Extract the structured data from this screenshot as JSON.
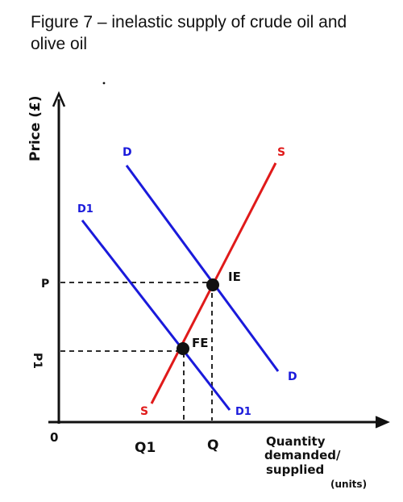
{
  "title": {
    "line1": "Figure 7 – inelastic supply of crude oil and",
    "line2": "olive oil"
  },
  "axes": {
    "y_label": "Price (£)",
    "x_label_line1": "Quantity",
    "x_label_line2": "demanded/",
    "x_label_line3": "supplied",
    "x_label_line4": "(units)",
    "origin": "0"
  },
  "ticks": {
    "p": "P",
    "p1": "P1",
    "q1": "Q1",
    "q": "Q"
  },
  "curves": {
    "demand": "D",
    "demand_end": "D",
    "demand1": "D1",
    "demand1_end": "D1",
    "supply": "S",
    "supply_end": "S"
  },
  "points": {
    "ie": "IE",
    "fe": "FE"
  },
  "colors": {
    "demand": "#1a1adb",
    "supply": "#e01a1a",
    "ink": "#111111"
  }
}
